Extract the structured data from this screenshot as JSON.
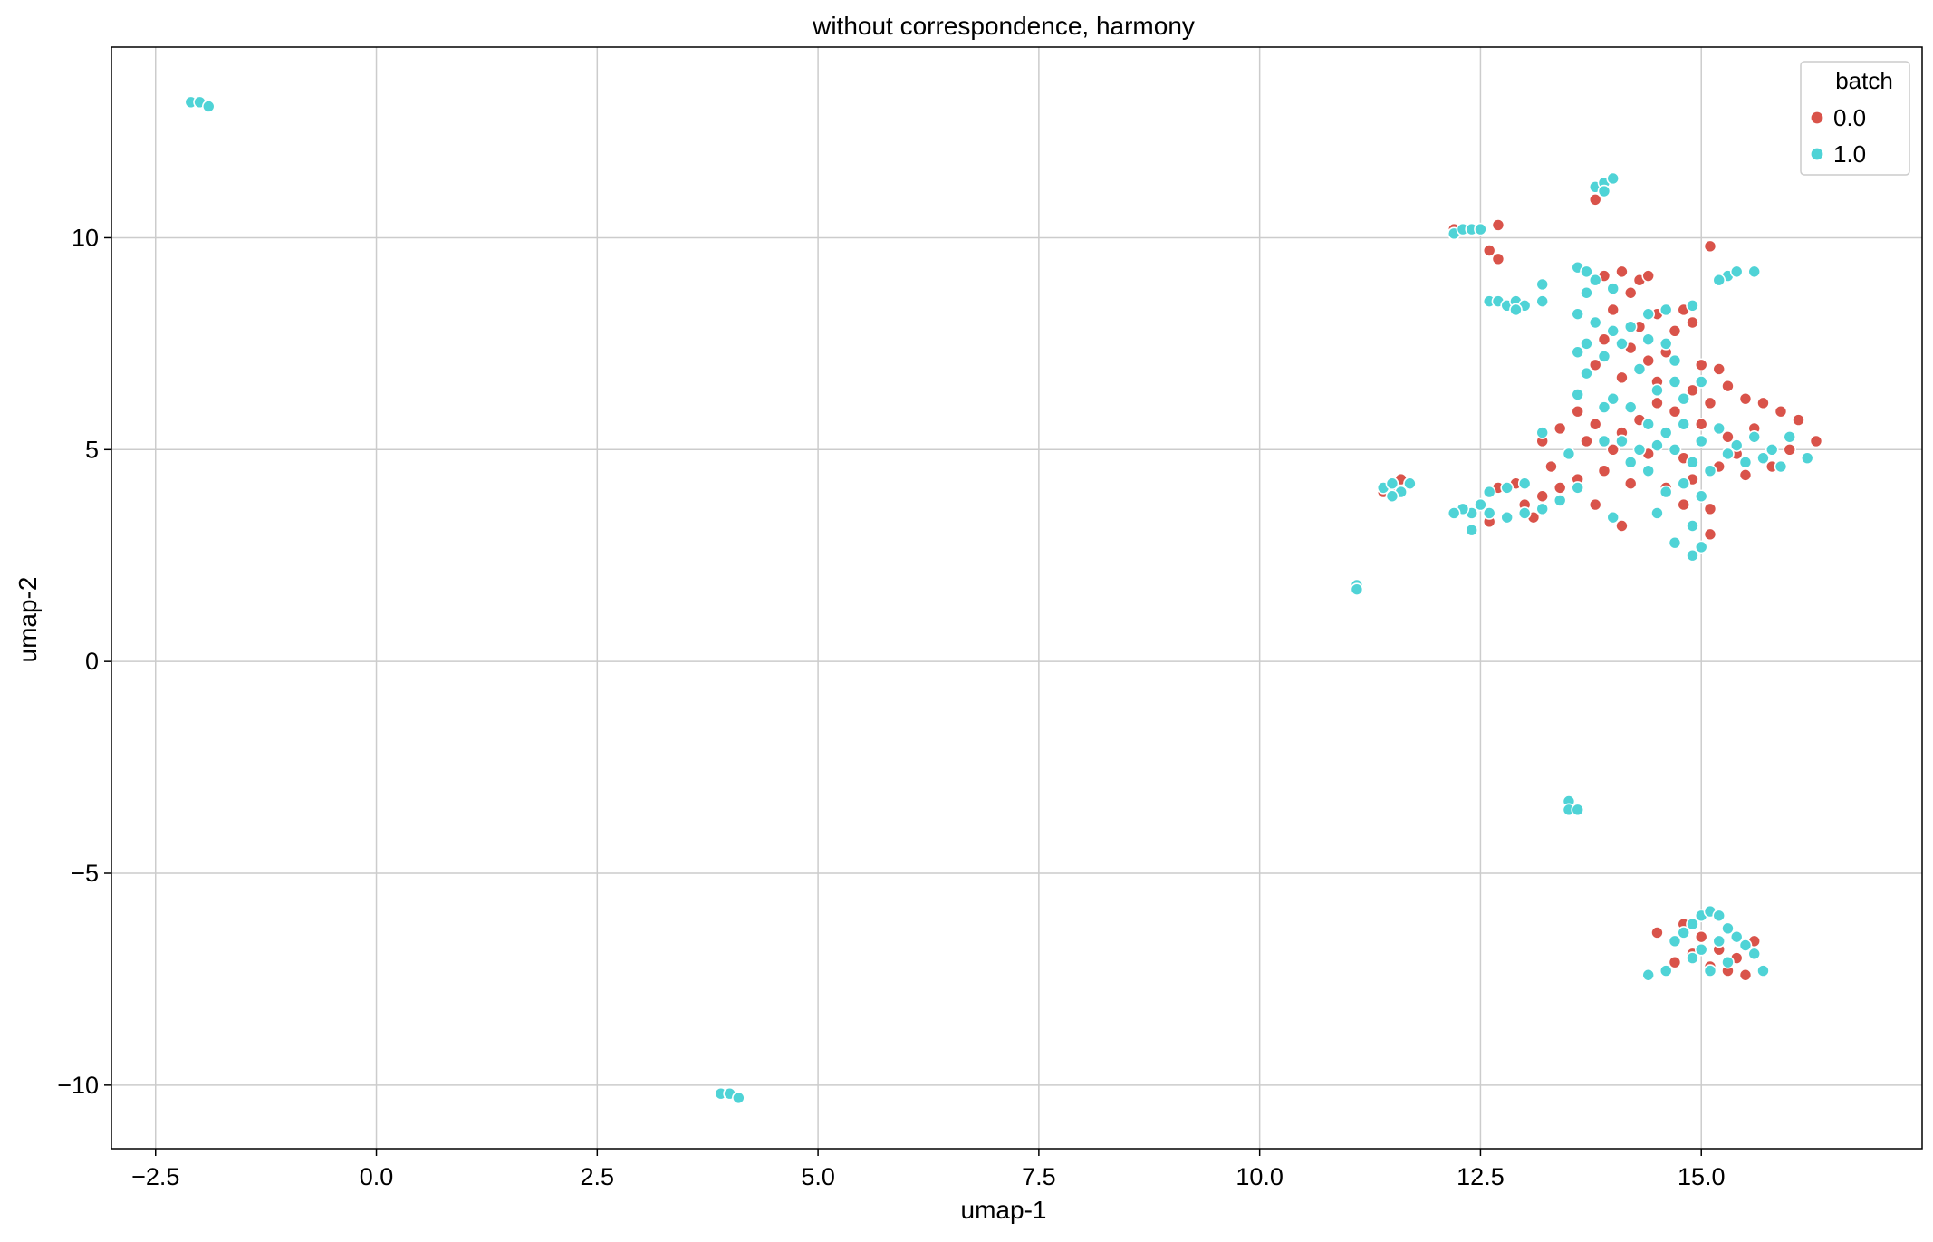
{
  "chart_data": {
    "type": "scatter",
    "title": "without correspondence, harmony",
    "xlabel": "umap-1",
    "ylabel": "umap-2",
    "xlim": [
      -3.0,
      17.5
    ],
    "ylim": [
      -11.5,
      14.5
    ],
    "x_ticks": [
      -2.5,
      0.0,
      2.5,
      5.0,
      7.5,
      10.0,
      12.5,
      15.0
    ],
    "x_tick_labels": [
      "−2.5",
      "0.0",
      "2.5",
      "5.0",
      "7.5",
      "10.0",
      "12.5",
      "15.0"
    ],
    "y_ticks": [
      -10,
      -5,
      0,
      5,
      10
    ],
    "y_tick_labels": [
      "−10",
      "−5",
      "0",
      "5",
      "10"
    ],
    "grid": true,
    "legend": {
      "title": "batch",
      "placement": "top-right",
      "entries": [
        {
          "label": "0.0",
          "color": "#d9534a"
        },
        {
          "label": "1.0",
          "color": "#4fd3d6"
        }
      ]
    },
    "series": [
      {
        "name": "0.0",
        "color": "#d9534a",
        "points": [
          [
            13.8,
            10.9
          ],
          [
            12.7,
            10.3
          ],
          [
            12.2,
            10.2
          ],
          [
            12.6,
            9.7
          ],
          [
            12.7,
            9.5
          ],
          [
            15.1,
            9.8
          ],
          [
            13.9,
            9.1
          ],
          [
            14.1,
            9.2
          ],
          [
            14.3,
            9.0
          ],
          [
            14.4,
            9.1
          ],
          [
            14.2,
            8.7
          ],
          [
            14.0,
            8.3
          ],
          [
            14.5,
            8.2
          ],
          [
            14.8,
            8.3
          ],
          [
            14.9,
            8.0
          ],
          [
            14.7,
            7.8
          ],
          [
            14.3,
            7.9
          ],
          [
            13.9,
            7.6
          ],
          [
            14.2,
            7.4
          ],
          [
            14.6,
            7.3
          ],
          [
            15.0,
            7.0
          ],
          [
            14.4,
            7.1
          ],
          [
            13.8,
            7.0
          ],
          [
            14.1,
            6.7
          ],
          [
            14.5,
            6.6
          ],
          [
            14.9,
            6.4
          ],
          [
            15.2,
            6.9
          ],
          [
            15.3,
            6.5
          ],
          [
            15.1,
            6.1
          ],
          [
            15.5,
            6.2
          ],
          [
            15.7,
            6.1
          ],
          [
            15.9,
            5.9
          ],
          [
            16.1,
            5.7
          ],
          [
            16.3,
            5.2
          ],
          [
            16.0,
            5.0
          ],
          [
            15.6,
            5.5
          ],
          [
            15.3,
            5.3
          ],
          [
            15.0,
            5.6
          ],
          [
            14.7,
            5.9
          ],
          [
            14.5,
            6.1
          ],
          [
            14.3,
            5.7
          ],
          [
            14.1,
            5.4
          ],
          [
            13.8,
            5.6
          ],
          [
            13.6,
            5.9
          ],
          [
            13.4,
            5.5
          ],
          [
            13.7,
            5.2
          ],
          [
            14.0,
            5.0
          ],
          [
            14.4,
            4.9
          ],
          [
            14.8,
            4.8
          ],
          [
            15.2,
            4.6
          ],
          [
            15.5,
            4.4
          ],
          [
            15.8,
            4.6
          ],
          [
            15.4,
            4.9
          ],
          [
            14.9,
            4.3
          ],
          [
            14.6,
            4.1
          ],
          [
            14.2,
            4.2
          ],
          [
            13.9,
            4.5
          ],
          [
            13.6,
            4.3
          ],
          [
            14.8,
            3.7
          ],
          [
            15.1,
            3.6
          ],
          [
            15.1,
            3.0
          ],
          [
            14.1,
            3.2
          ],
          [
            13.8,
            3.7
          ],
          [
            13.3,
            4.6
          ],
          [
            13.4,
            4.1
          ],
          [
            13.2,
            3.9
          ],
          [
            13.0,
            3.7
          ],
          [
            13.1,
            3.4
          ],
          [
            12.9,
            4.2
          ],
          [
            12.8,
            3.4
          ],
          [
            12.6,
            3.3
          ],
          [
            13.2,
            5.2
          ],
          [
            12.7,
            4.1
          ],
          [
            11.4,
            4.0
          ],
          [
            11.6,
            4.3
          ],
          [
            11.5,
            4.1
          ],
          [
            14.5,
            -6.4
          ],
          [
            14.8,
            -6.2
          ],
          [
            15.0,
            -6.5
          ],
          [
            15.2,
            -6.8
          ],
          [
            15.4,
            -7.0
          ],
          [
            15.5,
            -7.4
          ],
          [
            15.3,
            -7.3
          ],
          [
            14.9,
            -6.9
          ],
          [
            14.7,
            -7.1
          ],
          [
            15.1,
            -7.2
          ],
          [
            15.6,
            -6.6
          ],
          [
            14.6,
            -7.3
          ]
        ]
      },
      {
        "name": "1.0",
        "color": "#4fd3d6",
        "points": [
          [
            -2.1,
            13.2
          ],
          [
            -2.0,
            13.2
          ],
          [
            -1.9,
            13.1
          ],
          [
            13.8,
            11.2
          ],
          [
            13.9,
            11.3
          ],
          [
            14.0,
            11.4
          ],
          [
            13.9,
            11.1
          ],
          [
            12.2,
            10.1
          ],
          [
            12.3,
            10.2
          ],
          [
            12.4,
            10.2
          ],
          [
            12.5,
            10.2
          ],
          [
            12.6,
            8.5
          ],
          [
            12.7,
            8.5
          ],
          [
            12.8,
            8.4
          ],
          [
            12.9,
            8.5
          ],
          [
            13.0,
            8.4
          ],
          [
            13.2,
            8.5
          ],
          [
            13.2,
            8.9
          ],
          [
            12.9,
            8.3
          ],
          [
            13.6,
            9.3
          ],
          [
            13.7,
            9.2
          ],
          [
            13.8,
            9.0
          ],
          [
            13.7,
            8.7
          ],
          [
            14.0,
            8.8
          ],
          [
            13.6,
            8.2
          ],
          [
            13.8,
            8.0
          ],
          [
            14.0,
            7.8
          ],
          [
            13.7,
            7.5
          ],
          [
            13.6,
            7.3
          ],
          [
            13.9,
            7.2
          ],
          [
            14.1,
            7.5
          ],
          [
            14.2,
            7.9
          ],
          [
            14.4,
            7.6
          ],
          [
            14.6,
            7.5
          ],
          [
            14.7,
            7.1
          ],
          [
            14.3,
            6.9
          ],
          [
            14.5,
            6.4
          ],
          [
            14.7,
            6.6
          ],
          [
            14.8,
            6.2
          ],
          [
            15.0,
            6.6
          ],
          [
            15.3,
            9.1
          ],
          [
            15.4,
            9.2
          ],
          [
            15.6,
            9.2
          ],
          [
            15.2,
            9.0
          ],
          [
            14.9,
            8.4
          ],
          [
            14.6,
            8.3
          ],
          [
            14.4,
            8.2
          ],
          [
            13.7,
            6.8
          ],
          [
            13.6,
            6.3
          ],
          [
            13.9,
            6.0
          ],
          [
            14.0,
            6.2
          ],
          [
            14.2,
            6.0
          ],
          [
            14.4,
            5.6
          ],
          [
            14.6,
            5.4
          ],
          [
            14.8,
            5.6
          ],
          [
            15.0,
            5.2
          ],
          [
            15.2,
            5.5
          ],
          [
            15.4,
            5.1
          ],
          [
            15.6,
            5.3
          ],
          [
            15.8,
            5.0
          ],
          [
            16.0,
            5.3
          ],
          [
            16.2,
            4.8
          ],
          [
            15.9,
            4.6
          ],
          [
            15.7,
            4.8
          ],
          [
            15.5,
            4.7
          ],
          [
            15.3,
            4.9
          ],
          [
            15.1,
            4.5
          ],
          [
            14.9,
            4.7
          ],
          [
            14.7,
            5.0
          ],
          [
            14.5,
            5.1
          ],
          [
            14.3,
            5.0
          ],
          [
            14.1,
            5.2
          ],
          [
            13.9,
            5.2
          ],
          [
            14.2,
            4.7
          ],
          [
            14.4,
            4.5
          ],
          [
            14.6,
            4.0
          ],
          [
            14.8,
            4.2
          ],
          [
            15.0,
            3.9
          ],
          [
            14.5,
            3.5
          ],
          [
            14.7,
            2.8
          ],
          [
            14.9,
            2.5
          ],
          [
            15.0,
            2.7
          ],
          [
            14.9,
            3.2
          ],
          [
            14.0,
            3.4
          ],
          [
            13.6,
            4.1
          ],
          [
            13.4,
            3.8
          ],
          [
            13.2,
            3.6
          ],
          [
            13.0,
            3.5
          ],
          [
            12.8,
            3.4
          ],
          [
            12.6,
            3.5
          ],
          [
            12.5,
            3.7
          ],
          [
            12.4,
            3.5
          ],
          [
            12.3,
            3.6
          ],
          [
            12.2,
            3.5
          ],
          [
            12.4,
            3.1
          ],
          [
            12.6,
            4.0
          ],
          [
            12.8,
            4.1
          ],
          [
            13.0,
            4.2
          ],
          [
            13.2,
            5.4
          ],
          [
            13.5,
            4.9
          ],
          [
            11.4,
            4.1
          ],
          [
            11.5,
            4.2
          ],
          [
            11.6,
            4.0
          ],
          [
            11.5,
            3.9
          ],
          [
            11.7,
            4.2
          ],
          [
            11.1,
            1.8
          ],
          [
            11.1,
            1.7
          ],
          [
            13.5,
            -3.3
          ],
          [
            13.5,
            -3.5
          ],
          [
            13.6,
            -3.5
          ],
          [
            3.9,
            -10.2
          ],
          [
            4.0,
            -10.2
          ],
          [
            4.1,
            -10.3
          ],
          [
            14.4,
            -7.4
          ],
          [
            14.6,
            -7.3
          ],
          [
            14.7,
            -6.6
          ],
          [
            14.8,
            -6.4
          ],
          [
            14.9,
            -6.2
          ],
          [
            15.0,
            -6.0
          ],
          [
            15.1,
            -5.9
          ],
          [
            15.2,
            -6.0
          ],
          [
            15.3,
            -6.3
          ],
          [
            15.4,
            -6.5
          ],
          [
            15.5,
            -6.7
          ],
          [
            15.6,
            -6.9
          ],
          [
            15.7,
            -7.3
          ],
          [
            15.2,
            -6.6
          ],
          [
            15.0,
            -6.8
          ],
          [
            14.9,
            -7.0
          ],
          [
            15.1,
            -7.3
          ],
          [
            15.3,
            -7.1
          ]
        ]
      }
    ]
  }
}
